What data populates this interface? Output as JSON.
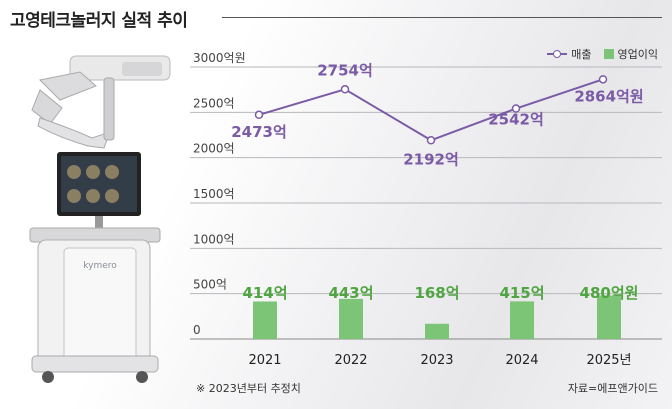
{
  "title": "고영테크놀러지 실적 추이",
  "footnote": "※ 2023년부터 추정치",
  "source": "자료=에프앤가이드",
  "colors": {
    "sales": "#7b5aa6",
    "profit_bar": "#7dc576",
    "profit_label": "#4fa53f"
  },
  "chart_data": {
    "type": "bar",
    "categories": [
      "2021",
      "2022",
      "2023",
      "2024",
      "2025년"
    ],
    "ylim": [
      0,
      3000
    ],
    "yticks": [
      {
        "value": 0,
        "label": "0"
      },
      {
        "value": 500,
        "label": "500억"
      },
      {
        "value": 1000,
        "label": "1000억"
      },
      {
        "value": 1500,
        "label": "1500억"
      },
      {
        "value": 2000,
        "label": "2000억"
      },
      {
        "value": 2500,
        "label": "2500억"
      },
      {
        "value": 3000,
        "label": "3000억원"
      }
    ],
    "grid": true,
    "legend_position": "top-right",
    "series": [
      {
        "name": "매출",
        "type": "line",
        "values": [
          2473,
          2754,
          2192,
          2542,
          2864
        ],
        "labels": [
          "2473억",
          "2754억",
          "2192억",
          "2542억",
          "2864억원"
        ]
      },
      {
        "name": "영업이익",
        "type": "bar",
        "values": [
          414,
          443,
          168,
          415,
          480
        ],
        "labels": [
          "414억",
          "443억",
          "168억",
          "415억",
          "480억원"
        ]
      }
    ]
  }
}
